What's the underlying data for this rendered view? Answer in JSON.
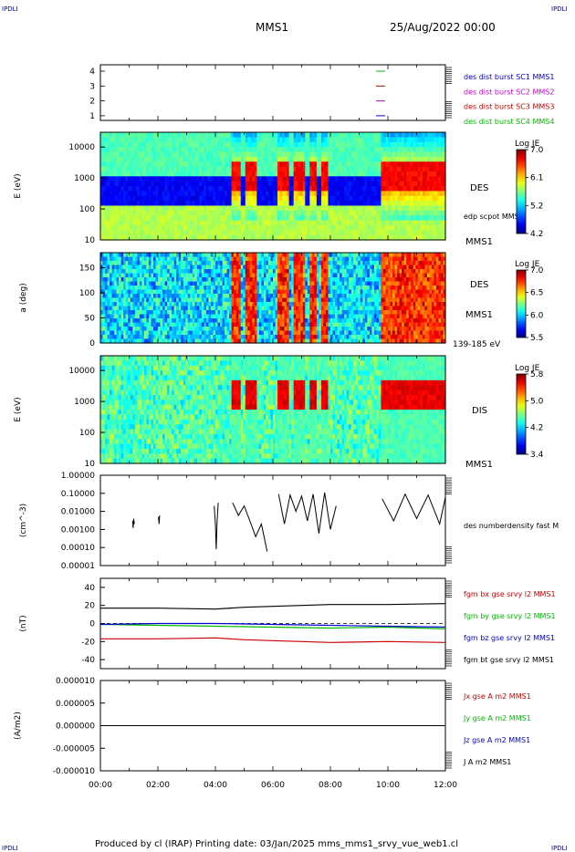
{
  "corner_label": "IPDLI",
  "header": {
    "spacecraft": "MMS1",
    "datetime": "25/Aug/2022 00:00"
  },
  "footer": "Produced by cl (IRAP)   Printing date: 03/Jan/2025   mms_mms1_srvy_vue_web1.cl",
  "chart_data": [
    {
      "type": "line",
      "panel": "spacecraft-index",
      "y_ticks": [
        "4",
        "3",
        "2",
        "1"
      ],
      "labels": [
        {
          "text": "des dist burst SC1 MMS1",
          "color": "#0000cc"
        },
        {
          "text": "des dist burst SC2 MMS2",
          "color": "#cc00cc"
        },
        {
          "text": "des dist burst SC3 MMS3",
          "color": "#cc0000"
        },
        {
          "text": "des dist burst SC4 MMS4",
          "color": "#00bb00"
        }
      ],
      "markers": [
        {
          "y": 4,
          "color": "#00bb00"
        },
        {
          "y": 3,
          "color": "#cc0000"
        },
        {
          "y": 2,
          "color": "#cc00cc"
        },
        {
          "y": 1,
          "color": "#0000cc"
        }
      ]
    },
    {
      "type": "heatmap",
      "panel": "des-energy",
      "ylabel": "E (eV)",
      "yscale": "log",
      "ylim": [
        10,
        30000
      ],
      "y_ticks": [
        "10000",
        "1000",
        "100",
        "10"
      ],
      "name": "DES",
      "overlay_label": "edp scpot MMS1",
      "sc_label": "MMS1",
      "colorbar": {
        "title": "Log JE",
        "ticks": [
          "7.0",
          "6.1",
          "5.2",
          "4.2"
        ],
        "range": [
          4.2,
          7.0
        ]
      }
    },
    {
      "type": "heatmap",
      "panel": "des-pitch-angle",
      "ylabel": "a (deg)",
      "ylim": [
        0,
        180
      ],
      "y_ticks": [
        "150",
        "100",
        "50",
        "0"
      ],
      "name": "DES",
      "sc_label": "MMS1",
      "energy_range": "139-185 eV",
      "colorbar": {
        "title": "Log JE",
        "ticks": [
          "7.0",
          "6.5",
          "6.0",
          "5.5"
        ],
        "range": [
          5.5,
          7.0
        ]
      }
    },
    {
      "type": "heatmap",
      "panel": "dis-energy",
      "ylabel": "E (eV)",
      "yscale": "log",
      "ylim": [
        10,
        30000
      ],
      "y_ticks": [
        "10000",
        "1000",
        "100",
        "10"
      ],
      "name": "DIS",
      "sc_label": "MMS1",
      "colorbar": {
        "title": "Log JE",
        "ticks": [
          "5.8",
          "5.0",
          "4.2",
          "3.4"
        ],
        "range": [
          3.4,
          5.8
        ]
      }
    },
    {
      "type": "line",
      "panel": "number-density",
      "ylabel": "(cm^-3)",
      "yscale": "log",
      "ylim": [
        1e-05,
        1.0
      ],
      "y_ticks": [
        "1.00000",
        "0.10000",
        "0.01000",
        "0.00100",
        "0.00010",
        "0.00001"
      ],
      "series": [
        {
          "name": "des numberdensity fast M",
          "color": "#000000",
          "segments": [
            {
              "t": [
                1.12,
                1.14,
                1.16,
                1.18
              ],
              "v": [
                0.003,
                0.0012,
                0.004,
                0.002
              ]
            },
            {
              "t": [
                2.02,
                2.04,
                2.06
              ],
              "v": [
                0.005,
                0.002,
                0.006
              ]
            },
            {
              "t": [
                3.96,
                4.0,
                4.03,
                4.06,
                4.1
              ],
              "v": [
                0.02,
                0.002,
                8e-05,
                0.003,
                0.03
              ]
            },
            {
              "t": [
                4.6,
                4.8,
                5.0,
                5.2,
                5.4,
                5.6,
                5.8
              ],
              "v": [
                0.03,
                0.006,
                0.02,
                0.003,
                0.0004,
                0.002,
                6e-05
              ]
            },
            {
              "t": [
                6.2,
                6.4,
                6.6,
                6.8,
                7.0,
                7.2,
                7.4,
                7.6,
                7.8,
                8.0,
                8.2
              ],
              "v": [
                0.09,
                0.002,
                0.08,
                0.01,
                0.07,
                0.003,
                0.09,
                0.0006,
                0.11,
                0.001,
                0.02
              ]
            },
            {
              "t": [
                9.8,
                10.2,
                10.6,
                11.0,
                11.4,
                11.8,
                12.0
              ],
              "v": [
                0.05,
                0.003,
                0.09,
                0.004,
                0.08,
                0.002,
                0.06
              ]
            }
          ]
        }
      ]
    },
    {
      "type": "line",
      "panel": "magnetic-field",
      "ylabel": "(nT)",
      "ylim": [
        -50,
        50
      ],
      "y_ticks": [
        "40",
        "20",
        "0",
        "-20",
        "-40"
      ],
      "series": [
        {
          "name": "fgm bx gse srvy l2 MMS1",
          "color": "#cc0000",
          "t": [
            0,
            2,
            4,
            5,
            6,
            8,
            10,
            12
          ],
          "v": [
            -17,
            -17,
            -16,
            -18,
            -19,
            -21,
            -20,
            -21
          ]
        },
        {
          "name": "fgm by gse srvy l2 MMS1",
          "color": "#00bb00",
          "t": [
            0,
            2,
            4,
            6,
            8,
            10,
            12
          ],
          "v": [
            -1,
            -2,
            -3,
            -4,
            -5,
            -4,
            -6
          ]
        },
        {
          "name": "fgm bz gse srvy l2 MMS1",
          "color": "#0000cc",
          "t": [
            0,
            2,
            4,
            6,
            8,
            10,
            12
          ],
          "v": [
            -1,
            0,
            0,
            -1,
            -2,
            -3,
            -4
          ]
        },
        {
          "name": "fgm bt gse srvy l2 MMS1",
          "color": "#000000",
          "t": [
            0,
            2,
            4,
            5,
            6,
            8,
            10,
            12
          ],
          "v": [
            17,
            17,
            16,
            18,
            19,
            21,
            21,
            22
          ]
        }
      ]
    },
    {
      "type": "line",
      "panel": "current-density",
      "ylabel": "(A/m2)",
      "ylim": [
        -1e-05,
        1e-05
      ],
      "y_ticks": [
        "0.000010",
        "0.000005",
        "0.000000",
        "-0.000005",
        "-0.000010"
      ],
      "series": [
        {
          "name": "Jx gse A m2 MMS1",
          "color": "#cc0000"
        },
        {
          "name": "Jy gse A m2 MMS1",
          "color": "#00bb00"
        },
        {
          "name": "Jz gse A m2 MMS1",
          "color": "#0000cc"
        },
        {
          "name": "J A m2 MMS1",
          "color": "#000000",
          "t": [
            0,
            12
          ],
          "v": [
            0.0,
            0.0
          ]
        }
      ],
      "x_ticks": [
        "00:00",
        "02:00",
        "04:00",
        "06:00",
        "08:00",
        "10:00",
        "12:00"
      ]
    }
  ]
}
